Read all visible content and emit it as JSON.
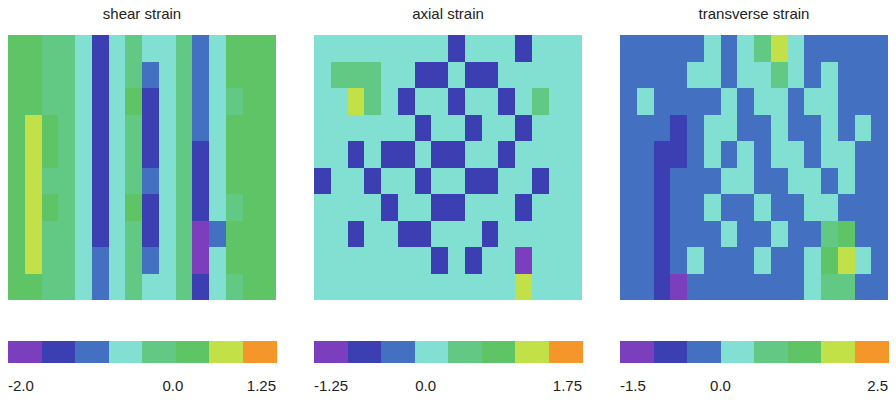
{
  "chart_data": [
    {
      "type": "heatmap",
      "title": "shear strain",
      "tick_labels": false,
      "cells": [
        [
          0.2,
          0.2,
          0.0,
          -0.2,
          -0.5,
          -1.3,
          -0.6,
          0.0,
          -0.5,
          -0.6,
          -0.2,
          -1.0,
          -0.5,
          0.1,
          0.2,
          0.1
        ],
        [
          0.2,
          0.2,
          0.0,
          -0.3,
          -0.6,
          -1.4,
          -0.5,
          0.0,
          -0.9,
          -0.6,
          -0.2,
          -1.0,
          -0.4,
          0.1,
          0.2,
          0.1
        ],
        [
          0.2,
          0.3,
          0.0,
          -0.2,
          -0.5,
          -1.3,
          -0.6,
          0.1,
          -1.2,
          -0.5,
          -0.1,
          -1.1,
          -0.5,
          0.0,
          0.2,
          0.1
        ],
        [
          0.2,
          0.5,
          0.1,
          -0.2,
          -0.6,
          -1.4,
          -0.6,
          0.0,
          -1.3,
          -0.6,
          -0.2,
          -1.0,
          -0.6,
          0.1,
          0.2,
          0.1
        ],
        [
          0.2,
          0.6,
          0.1,
          -0.3,
          -0.5,
          -1.3,
          -0.5,
          0.0,
          -1.2,
          -0.6,
          -0.2,
          -1.2,
          -0.4,
          0.1,
          0.2,
          0.2
        ],
        [
          0.2,
          0.6,
          0.0,
          -0.2,
          -0.6,
          -1.4,
          -0.6,
          0.0,
          -1.1,
          -0.5,
          -0.1,
          -1.3,
          -0.5,
          0.1,
          0.2,
          0.2
        ],
        [
          0.2,
          0.7,
          0.1,
          -0.2,
          -0.5,
          -1.3,
          -0.6,
          0.1,
          -1.2,
          -0.6,
          -0.2,
          -1.4,
          -0.6,
          0.0,
          0.2,
          0.1
        ],
        [
          0.2,
          0.6,
          0.0,
          -0.3,
          -0.6,
          -1.2,
          -0.5,
          0.0,
          -1.3,
          -0.5,
          -0.2,
          -1.8,
          -0.8,
          0.1,
          0.2,
          0.1
        ],
        [
          0.2,
          0.6,
          0.0,
          -0.2,
          -0.5,
          -1.0,
          -0.6,
          0.0,
          -1.0,
          -0.6,
          -0.1,
          -1.9,
          -0.7,
          0.1,
          0.2,
          0.1
        ],
        [
          0.2,
          0.3,
          0.0,
          -0.2,
          -0.5,
          -0.9,
          -0.5,
          0.0,
          -0.6,
          -0.5,
          -0.2,
          -1.3,
          -0.5,
          0.0,
          0.2,
          0.1
        ]
      ],
      "colorbar": {
        "range": [
          -2,
          1.25
        ],
        "ticks": [
          {
            "value": -2,
            "label": "-2.0"
          },
          {
            "value": 0,
            "label": "0.0"
          },
          1.25
        ],
        "colors": [
          "#7b3fbe",
          "#3b3fb2",
          "#4470c2",
          "#82e0d2",
          "#62c985",
          "#5ec466",
          "#c2e048",
          "#f5962a"
        ]
      }
    },
    {
      "type": "heatmap",
      "title": "axial strain",
      "tick_labels": false,
      "cells": [
        [
          0.0,
          0.0,
          0.0,
          0.0,
          0.0,
          0.0,
          0.0,
          0.0,
          -0.7,
          0.0,
          0.0,
          0.0,
          -0.6,
          0.0,
          0.0,
          0.0
        ],
        [
          0.0,
          0.4,
          0.5,
          0.4,
          0.0,
          0.0,
          -0.7,
          -0.6,
          0.0,
          -0.7,
          -0.7,
          0.0,
          0.0,
          0.0,
          0.0,
          0.0
        ],
        [
          0.0,
          0.0,
          1.1,
          0.4,
          0.0,
          -0.7,
          0.0,
          0.0,
          -0.7,
          0.0,
          0.0,
          -0.7,
          0.0,
          0.4,
          0.0,
          0.0
        ],
        [
          0.0,
          0.0,
          0.0,
          0.0,
          0.0,
          0.0,
          -0.7,
          0.0,
          0.0,
          -0.7,
          0.0,
          0.0,
          -0.7,
          0.0,
          0.0,
          0.0
        ],
        [
          0.0,
          0.0,
          -0.7,
          0.0,
          -0.7,
          -0.7,
          0.0,
          -0.7,
          -0.7,
          0.0,
          0.0,
          -0.7,
          0.0,
          0.0,
          0.0,
          0.0
        ],
        [
          -0.7,
          0.0,
          0.0,
          -0.7,
          0.0,
          0.0,
          -0.7,
          0.0,
          0.0,
          -0.7,
          -0.7,
          0.0,
          0.0,
          -0.7,
          0.0,
          0.0
        ],
        [
          0.0,
          0.0,
          0.0,
          0.0,
          -0.7,
          0.0,
          0.0,
          -0.7,
          -0.7,
          0.0,
          0.0,
          0.0,
          -0.7,
          0.0,
          0.0,
          0.0
        ],
        [
          0.0,
          0.0,
          -0.7,
          0.0,
          0.0,
          -0.7,
          -0.7,
          0.0,
          0.0,
          0.0,
          -0.7,
          0.0,
          0.0,
          0.0,
          0.0,
          0.0
        ],
        [
          0.0,
          0.0,
          0.0,
          0.0,
          0.0,
          0.0,
          0.0,
          -0.7,
          0.0,
          -0.7,
          0.0,
          0.0,
          -1.1,
          0.0,
          0.0,
          0.0
        ],
        [
          0.0,
          0.0,
          0.0,
          0.0,
          0.0,
          0.0,
          0.0,
          0.0,
          0.0,
          0.0,
          0.0,
          0.0,
          1.2,
          0.0,
          0.0,
          0.0
        ]
      ],
      "colorbar": {
        "range": [
          -1.25,
          1.75
        ],
        "ticks": [
          -1.25,
          {
            "value": 0,
            "label": "0.0"
          },
          1.75
        ],
        "colors": [
          "#7b3fbe",
          "#3b3fb2",
          "#4470c2",
          "#82e0d2",
          "#62c985",
          "#5ec466",
          "#c2e048",
          "#f5962a"
        ]
      }
    },
    {
      "type": "heatmap",
      "title": "transverse strain",
      "tick_labels": false,
      "cells": [
        [
          -0.3,
          -0.3,
          -0.3,
          -0.3,
          -0.3,
          0.2,
          -0.3,
          0.2,
          0.6,
          1.6,
          0.2,
          -0.3,
          -0.3,
          -0.3,
          -0.3,
          -0.3
        ],
        [
          -0.3,
          -0.3,
          -0.3,
          -0.3,
          0.2,
          0.2,
          -0.3,
          0.2,
          0.2,
          0.6,
          0.2,
          -0.3,
          0.2,
          -0.3,
          -0.3,
          -0.3
        ],
        [
          -0.3,
          0.2,
          -0.3,
          -0.3,
          -0.3,
          -0.3,
          0.2,
          -0.3,
          0.2,
          0.2,
          -0.3,
          0.2,
          0.2,
          -0.3,
          -0.3,
          -0.3
        ],
        [
          -0.3,
          -0.3,
          -0.3,
          -0.7,
          -0.3,
          0.2,
          0.2,
          -0.3,
          -0.3,
          0.2,
          -0.3,
          -0.3,
          0.2,
          -0.3,
          0.2,
          -0.3
        ],
        [
          -0.3,
          -0.3,
          -0.7,
          -0.7,
          -0.3,
          0.2,
          -0.3,
          0.2,
          -0.3,
          0.2,
          0.2,
          -0.3,
          0.2,
          0.2,
          -0.3,
          -0.3
        ],
        [
          -0.3,
          -0.3,
          -0.7,
          -0.3,
          -0.3,
          -0.3,
          0.2,
          0.2,
          -0.3,
          -0.3,
          0.2,
          0.2,
          -0.3,
          0.2,
          -0.3,
          -0.3
        ],
        [
          -0.3,
          -0.3,
          -0.8,
          -0.3,
          -0.3,
          0.2,
          -0.3,
          -0.3,
          0.2,
          -0.3,
          -0.3,
          0.2,
          0.2,
          -0.3,
          -0.3,
          -0.3
        ],
        [
          -0.3,
          -0.3,
          -0.8,
          -0.3,
          -0.3,
          -0.3,
          0.2,
          -0.3,
          -0.3,
          0.2,
          -0.3,
          -0.3,
          0.6,
          1.0,
          -0.3,
          -0.3
        ],
        [
          -0.3,
          -0.3,
          -0.8,
          -0.3,
          0.2,
          -0.3,
          -0.3,
          -0.3,
          0.2,
          -0.3,
          -0.3,
          0.2,
          1.1,
          1.7,
          0.2,
          -0.3
        ],
        [
          -0.3,
          -0.3,
          -0.9,
          -1.2,
          -0.3,
          -0.3,
          -0.3,
          -0.3,
          -0.3,
          -0.3,
          -0.3,
          0.2,
          0.6,
          0.8,
          -0.3,
          -0.3
        ]
      ],
      "colorbar": {
        "range": [
          -1.5,
          2.5
        ],
        "ticks": [
          -1.5,
          {
            "value": 0,
            "label": "0.0"
          },
          2.5
        ],
        "colors": [
          "#7b3fbe",
          "#3b3fb2",
          "#4470c2",
          "#82e0d2",
          "#62c985",
          "#5ec466",
          "#c2e048",
          "#f5962a"
        ]
      }
    }
  ]
}
